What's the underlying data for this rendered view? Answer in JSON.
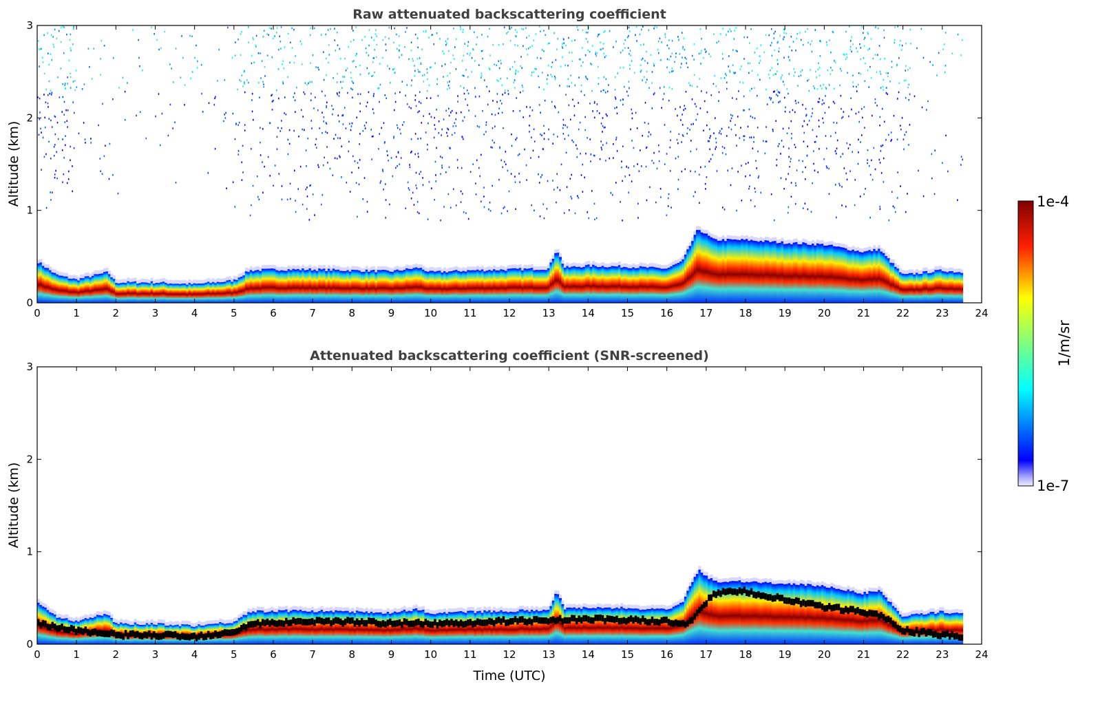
{
  "chart_data": [
    {
      "type": "heatmap",
      "title": "Raw attenuated backscattering coefficient",
      "xlabel": "",
      "ylabel": "Altitude (km)",
      "xlim": [
        0,
        24
      ],
      "ylim": [
        0,
        3
      ],
      "xticks": [
        "0",
        "1",
        "2",
        "3",
        "4",
        "5",
        "6",
        "7",
        "8",
        "9",
        "10",
        "11",
        "12",
        "13",
        "14",
        "15",
        "16",
        "17",
        "18",
        "19",
        "20",
        "21",
        "22",
        "23",
        "24"
      ],
      "yticks": [
        "0",
        "1",
        "2",
        "3"
      ],
      "screened": false
    },
    {
      "type": "heatmap",
      "title": "Attenuated backscattering coefficient (SNR-screened)",
      "xlabel": "Time (UTC)",
      "ylabel": "Altitude (km)",
      "xlim": [
        0,
        24
      ],
      "ylim": [
        0,
        3
      ],
      "xticks": [
        "0",
        "1",
        "2",
        "3",
        "4",
        "5",
        "6",
        "7",
        "8",
        "9",
        "10",
        "11",
        "12",
        "13",
        "14",
        "15",
        "16",
        "17",
        "18",
        "19",
        "20",
        "21",
        "22",
        "23",
        "24"
      ],
      "yticks": [
        "0",
        "1",
        "2",
        "3"
      ],
      "screened": true
    }
  ],
  "colorbar": {
    "label": "1/m/sr",
    "max_label": "1e-4",
    "min_label": "1e-7",
    "colormap": "jet",
    "range": [
      1e-07,
      0.0001
    ]
  },
  "data_end_hour": 23.5,
  "layer_top_km": [
    {
      "t": 0.0,
      "h": 0.45
    },
    {
      "t": 0.5,
      "h": 0.3
    },
    {
      "t": 1.0,
      "h": 0.25
    },
    {
      "t": 1.8,
      "h": 0.33
    },
    {
      "t": 2.0,
      "h": 0.22
    },
    {
      "t": 3.0,
      "h": 0.22
    },
    {
      "t": 4.0,
      "h": 0.2
    },
    {
      "t": 5.0,
      "h": 0.24
    },
    {
      "t": 5.4,
      "h": 0.35
    },
    {
      "t": 6.0,
      "h": 0.36
    },
    {
      "t": 7.0,
      "h": 0.36
    },
    {
      "t": 8.0,
      "h": 0.35
    },
    {
      "t": 9.0,
      "h": 0.34
    },
    {
      "t": 9.7,
      "h": 0.38
    },
    {
      "t": 10.0,
      "h": 0.33
    },
    {
      "t": 11.0,
      "h": 0.35
    },
    {
      "t": 12.0,
      "h": 0.36
    },
    {
      "t": 13.0,
      "h": 0.37
    },
    {
      "t": 13.2,
      "h": 0.58
    },
    {
      "t": 13.4,
      "h": 0.38
    },
    {
      "t": 14.0,
      "h": 0.4
    },
    {
      "t": 15.0,
      "h": 0.39
    },
    {
      "t": 16.0,
      "h": 0.37
    },
    {
      "t": 16.4,
      "h": 0.45
    },
    {
      "t": 16.8,
      "h": 0.8
    },
    {
      "t": 17.2,
      "h": 0.68
    },
    {
      "t": 18.0,
      "h": 0.68
    },
    {
      "t": 19.0,
      "h": 0.65
    },
    {
      "t": 20.0,
      "h": 0.63
    },
    {
      "t": 21.0,
      "h": 0.55
    },
    {
      "t": 21.4,
      "h": 0.58
    },
    {
      "t": 22.0,
      "h": 0.3
    },
    {
      "t": 23.0,
      "h": 0.35
    },
    {
      "t": 23.5,
      "h": 0.33
    }
  ],
  "black_band_km": [
    {
      "t": 0.0,
      "h": 0.22
    },
    {
      "t": 1.0,
      "h": 0.15
    },
    {
      "t": 2.0,
      "h": 0.1
    },
    {
      "t": 3.0,
      "h": 0.1
    },
    {
      "t": 4.0,
      "h": 0.08
    },
    {
      "t": 5.0,
      "h": 0.14
    },
    {
      "t": 5.5,
      "h": 0.22
    },
    {
      "t": 7.0,
      "h": 0.25
    },
    {
      "t": 9.0,
      "h": 0.23
    },
    {
      "t": 10.0,
      "h": 0.22
    },
    {
      "t": 12.0,
      "h": 0.25
    },
    {
      "t": 14.0,
      "h": 0.27
    },
    {
      "t": 16.0,
      "h": 0.25
    },
    {
      "t": 16.5,
      "h": 0.2
    },
    {
      "t": 17.2,
      "h": 0.55
    },
    {
      "t": 18.0,
      "h": 0.57
    },
    {
      "t": 19.0,
      "h": 0.48
    },
    {
      "t": 20.0,
      "h": 0.4
    },
    {
      "t": 21.0,
      "h": 0.35
    },
    {
      "t": 21.5,
      "h": 0.3
    },
    {
      "t": 22.0,
      "h": 0.15
    },
    {
      "t": 23.5,
      "h": 0.08
    }
  ]
}
